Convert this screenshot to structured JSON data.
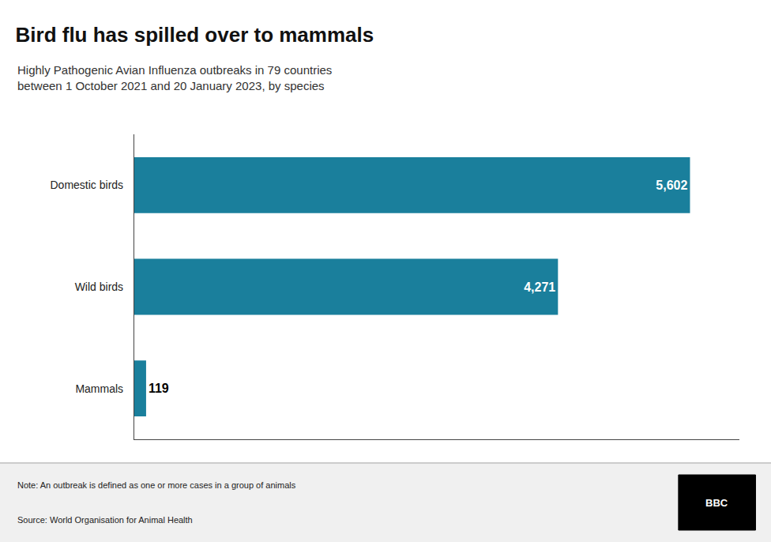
{
  "chart_data": {
    "type": "bar",
    "orientation": "horizontal",
    "title": "Bird flu has spilled over to mammals",
    "subtitle": "Highly Pathogenic Avian Influenza outbreaks in 79 countries\nbetween 1 October 2021 and 20 January 2023, by species",
    "categories": [
      "Domestic birds",
      "Wild birds",
      "Mammals"
    ],
    "values": [
      5602,
      4271,
      119
    ],
    "value_labels": [
      "5,602",
      "4,271",
      "119"
    ],
    "data_labels": true,
    "color": "#1a7f9c",
    "xlim": [
      0,
      6100
    ],
    "tick_labels": "y",
    "grid": false,
    "annotations": [
      "Note: An outbreak is defined as one or more cases in a group of animals",
      "Source: World Organisation for Animal Health",
      "BBC"
    ]
  }
}
